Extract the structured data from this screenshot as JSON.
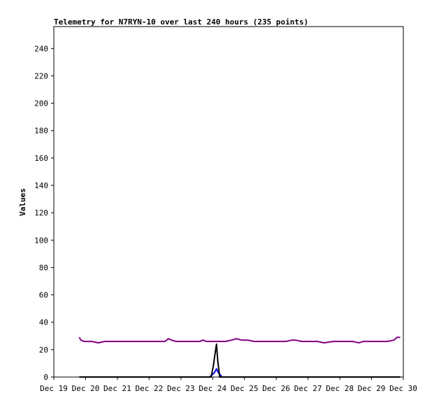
{
  "chart_data": {
    "type": "line",
    "title": "Telemetry for N7RYN-10 over last 240 hours (235 points)",
    "xlabel": "",
    "ylabel": "Values",
    "ylim": [
      0,
      256
    ],
    "yticks": [
      0,
      20,
      40,
      60,
      80,
      100,
      120,
      140,
      160,
      180,
      200,
      220,
      240
    ],
    "xticks": [
      "Dec 19",
      "Dec 20",
      "Dec 21",
      "Dec 22",
      "Dec 23",
      "Dec 24",
      "Dec 25",
      "Dec 26",
      "Dec 27",
      "Dec 28",
      "Dec 29",
      "Dec 30"
    ],
    "x_unit": "days since Dec 19 00:00",
    "grid": false,
    "series": [
      {
        "color": "#800080",
        "points": [
          [
            0.8,
            29
          ],
          [
            0.85,
            27
          ],
          [
            0.95,
            26
          ],
          [
            1.2,
            26
          ],
          [
            1.4,
            25
          ],
          [
            1.6,
            26
          ],
          [
            2.0,
            26
          ],
          [
            2.5,
            26
          ],
          [
            3.0,
            26
          ],
          [
            3.5,
            26
          ],
          [
            3.6,
            28
          ],
          [
            3.7,
            27
          ],
          [
            3.85,
            26
          ],
          [
            4.2,
            26
          ],
          [
            4.6,
            26
          ],
          [
            4.7,
            27
          ],
          [
            4.8,
            26
          ],
          [
            5.0,
            26
          ],
          [
            5.2,
            26
          ],
          [
            5.4,
            26
          ],
          [
            5.6,
            27
          ],
          [
            5.75,
            28
          ],
          [
            5.9,
            27
          ],
          [
            6.1,
            27
          ],
          [
            6.3,
            26
          ],
          [
            6.6,
            26
          ],
          [
            7.0,
            26
          ],
          [
            7.3,
            26
          ],
          [
            7.5,
            27
          ],
          [
            7.6,
            27
          ],
          [
            7.8,
            26
          ],
          [
            8.0,
            26
          ],
          [
            8.3,
            26
          ],
          [
            8.5,
            25
          ],
          [
            8.8,
            26
          ],
          [
            9.0,
            26
          ],
          [
            9.2,
            26
          ],
          [
            9.4,
            26
          ],
          [
            9.6,
            25
          ],
          [
            9.75,
            26
          ],
          [
            9.9,
            26
          ],
          [
            10.2,
            26
          ],
          [
            10.5,
            26
          ],
          [
            10.7,
            27
          ],
          [
            10.8,
            29
          ],
          [
            10.9,
            29
          ]
        ]
      },
      {
        "color": "#0000ff",
        "points": [
          [
            0.8,
            0
          ],
          [
            4.9,
            0
          ],
          [
            5.05,
            3
          ],
          [
            5.12,
            6
          ],
          [
            5.18,
            3
          ],
          [
            5.3,
            0
          ],
          [
            10.9,
            0
          ]
        ]
      },
      {
        "color": "#000000",
        "points": [
          [
            0.8,
            0
          ],
          [
            4.95,
            0
          ],
          [
            5.02,
            8
          ],
          [
            5.08,
            18
          ],
          [
            5.12,
            24
          ],
          [
            5.16,
            12
          ],
          [
            5.22,
            0
          ],
          [
            10.9,
            0
          ]
        ]
      }
    ]
  }
}
